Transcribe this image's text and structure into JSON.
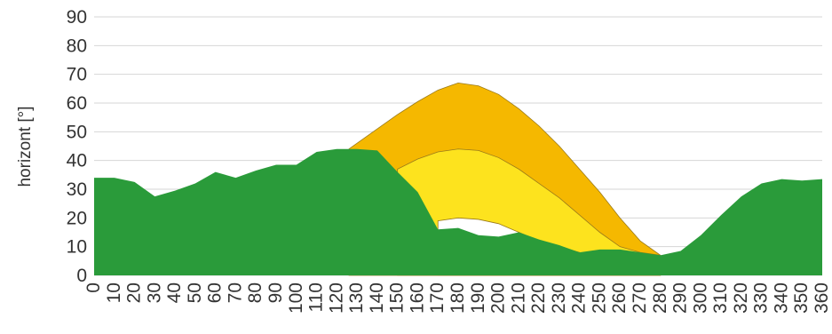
{
  "chart_data": {
    "type": "area",
    "title": "",
    "xlabel": "",
    "ylabel": "horizont [°]",
    "xlim": [
      0,
      360
    ],
    "ylim": [
      0,
      90
    ],
    "xticks": [
      0,
      10,
      20,
      30,
      40,
      50,
      60,
      70,
      80,
      90,
      100,
      110,
      120,
      130,
      140,
      150,
      160,
      170,
      180,
      190,
      200,
      210,
      220,
      230,
      240,
      250,
      260,
      270,
      280,
      290,
      300,
      310,
      320,
      330,
      340,
      350,
      360
    ],
    "yticks": [
      0,
      10,
      20,
      30,
      40,
      50,
      60,
      70,
      80,
      90
    ],
    "grid": "horizontal",
    "legend": "none",
    "series": [
      {
        "kind": "sun-path",
        "color": "#f5b800",
        "x": [
          126,
          140,
          150,
          160,
          170,
          180,
          190,
          200,
          210,
          220,
          230,
          240,
          250,
          260,
          270,
          280
        ],
        "y": [
          44,
          51,
          56,
          60.5,
          64.5,
          67,
          66,
          63,
          58,
          52,
          45,
          37,
          29,
          20,
          12,
          7
        ]
      },
      {
        "kind": "sun-path",
        "color": "#fde31e",
        "x": [
          150,
          160,
          170,
          180,
          190,
          200,
          210,
          220,
          230,
          240,
          250,
          260,
          270,
          280
        ],
        "y": [
          37,
          40.5,
          43,
          44,
          43.5,
          41,
          37,
          32,
          27,
          21,
          15,
          10,
          8,
          7
        ]
      },
      {
        "kind": "sun-path",
        "color": "#ffffff",
        "x": [
          170,
          180,
          190,
          200,
          210,
          220,
          230,
          240
        ],
        "y": [
          19,
          20,
          19.5,
          18,
          15,
          12,
          10,
          8
        ]
      },
      {
        "kind": "horizon",
        "color": "#2a9b3a",
        "x": [
          0,
          10,
          20,
          30,
          40,
          50,
          60,
          70,
          80,
          90,
          100,
          110,
          120,
          130,
          140,
          150,
          160,
          170,
          180,
          190,
          200,
          210,
          220,
          230,
          240,
          250,
          260,
          270,
          280,
          290,
          300,
          310,
          320,
          330,
          340,
          350,
          360
        ],
        "y": [
          34,
          34,
          32.5,
          27.5,
          29.5,
          32,
          36,
          34,
          36.5,
          38.5,
          38.5,
          43,
          44,
          44,
          43.5,
          36,
          29,
          16,
          16.5,
          14,
          13.5,
          15,
          12.5,
          10.5,
          8,
          9,
          9,
          8,
          7,
          8.5,
          14,
          21,
          27.5,
          32,
          33.5,
          33,
          33.5
        ]
      }
    ]
  }
}
